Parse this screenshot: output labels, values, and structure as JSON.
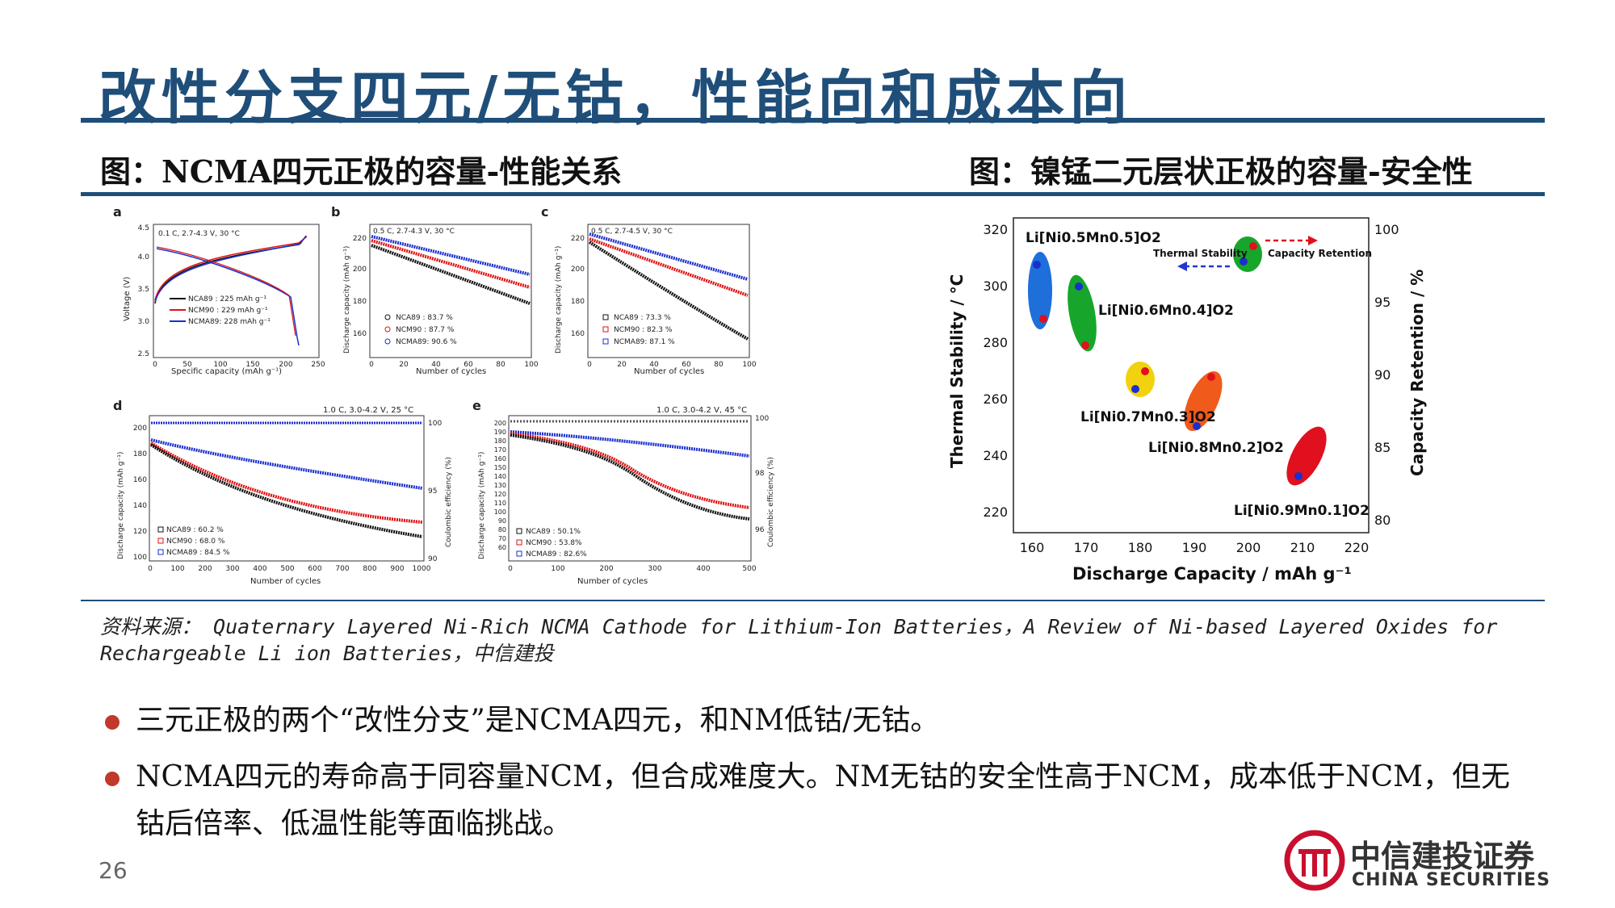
{
  "title": "改性分支四元/无钴，性能向和成本向",
  "left_figure": {
    "caption": "图：NCMA四元正极的容量-性能关系",
    "panel_a": {
      "letter": "a",
      "condition": "0.1 C, 2.7-4.3 V, 30 °C",
      "ylabel": "Voltage (V)",
      "xlabel": "Specific capacity (mAh g⁻¹)",
      "yticks": [
        "4.5",
        "4.0",
        "3.5",
        "3.0",
        "2.5"
      ],
      "xticks": [
        "0",
        "50",
        "100",
        "150",
        "200",
        "250"
      ],
      "legend": [
        "NCA89  : 225 mAh g⁻¹",
        "NCM90  : 229 mAh g⁻¹",
        "NCMA89: 228 mAh g⁻¹"
      ]
    },
    "panel_b": {
      "letter": "b",
      "condition": "0.5 C, 2.7-4.3 V, 30 °C",
      "ylabel": "Discharge capacity (mAh g⁻¹)",
      "xlabel": "Number of cycles",
      "yticks": [
        "220",
        "200",
        "180",
        "160"
      ],
      "xticks": [
        "0",
        "20",
        "40",
        "60",
        "80",
        "100"
      ],
      "legend": [
        "NCA89   : 83.7 %",
        "NCM90   : 87.7 %",
        "NCMA89: 90.6 %"
      ]
    },
    "panel_c": {
      "letter": "c",
      "condition": "0.5 C, 2.7-4.5 V, 30 °C",
      "ylabel": "Discharge capacity (mAh g⁻¹)",
      "xlabel": "Number of cycles",
      "yticks": [
        "220",
        "200",
        "180",
        "160"
      ],
      "xticks": [
        "0",
        "20",
        "40",
        "60",
        "80",
        "100"
      ],
      "legend": [
        "NCA89   : 73.3 %",
        "NCM90   : 82.3 %",
        "NCMA89: 87.1 %"
      ]
    },
    "panel_d": {
      "letter": "d",
      "condition": "1.0 C, 3.0-4.2 V, 25 °C",
      "ylabel": "Discharge capacity (mAh g⁻¹)",
      "y2label": "Coulombic efficiency (%)",
      "xlabel": "Number of cycles",
      "yticks": [
        "200",
        "180",
        "160",
        "140",
        "120",
        "100"
      ],
      "y2ticks": [
        "100",
        "95",
        "90"
      ],
      "xticks": [
        "0",
        "100",
        "200",
        "300",
        "400",
        "500",
        "600",
        "700",
        "800",
        "900",
        "1000"
      ],
      "legend": [
        "NCA89   : 60.2 %",
        "NCM90   : 68.0 %",
        "NCMA89 : 84.5 %"
      ]
    },
    "panel_e": {
      "letter": "e",
      "condition": "1.0 C, 3.0-4.2 V, 45 °C",
      "ylabel": "Discharge capacity (mAh g⁻¹)",
      "y2label": "Coulombic efficiency (%)",
      "xlabel": "Number of cycles",
      "yticks": [
        "200",
        "190",
        "180",
        "170",
        "160",
        "150",
        "140",
        "130",
        "120",
        "110",
        "100",
        "90",
        "80",
        "70",
        "60"
      ],
      "y2ticks": [
        "100",
        "98",
        "96"
      ],
      "xticks": [
        "0",
        "100",
        "200",
        "300",
        "400",
        "500"
      ],
      "legend": [
        "NCA89   : 50.1%",
        "NCM90   : 53.8%",
        "NCMA89 : 82.6%"
      ]
    },
    "series_colors": {
      "NCA89": "#111111",
      "NCM90": "#e01010",
      "NCMA89": "#1a2fd0"
    }
  },
  "right_figure": {
    "caption": "图：镍锰二元层状正极的容量-安全性",
    "ylabel": "Thermal Stability / °C",
    "y2label": "Capacity Retention / %",
    "xlabel": "Discharge Capacity / mAh g⁻¹",
    "yticks": [
      "320",
      "300",
      "280",
      "260",
      "240",
      "220"
    ],
    "y2ticks": [
      "100",
      "95",
      "90",
      "85",
      "80"
    ],
    "xticks": [
      "160",
      "170",
      "180",
      "190",
      "200",
      "210",
      "220"
    ],
    "legend_thermal": "Thermal Stability",
    "legend_capacity": "Capacity Retention",
    "materials": [
      {
        "label": "Li[Ni0.5Mn0.5]O2",
        "color": "#1e6fd9"
      },
      {
        "label": "Li[Ni0.6Mn0.4]O2",
        "color": "#17a62b"
      },
      {
        "label": "Li[Ni0.7Mn0.3]O2",
        "color": "#f2d20f"
      },
      {
        "label": "Li[Ni0.8Mn0.2]O2",
        "color": "#f05a1a"
      },
      {
        "label": "Li[Ni0.9Mn0.1]O2",
        "color": "#e0101e"
      }
    ]
  },
  "source": "资料来源： Quaternary Layered Ni-Rich NCMA Cathode for Lithium-Ion Batteries，A Review of Ni-based Layered Oxides for Rechargeable Li ion Batteries，中信建投",
  "bullets": [
    "三元正极的两个“改性分支”是NCMA四元，和NM低钴/无钴。",
    "NCMA四元的寿命高于同容量NCM，但合成难度大。NM无钴的安全性高于NCM，成本低于NCM，但无钴后倍率、低温性能等面临挑战。"
  ],
  "page_number": "26",
  "logo": {
    "cn": "中信建投证券",
    "en": "CHINA SECURITIES",
    "color": "#c8102e"
  }
}
